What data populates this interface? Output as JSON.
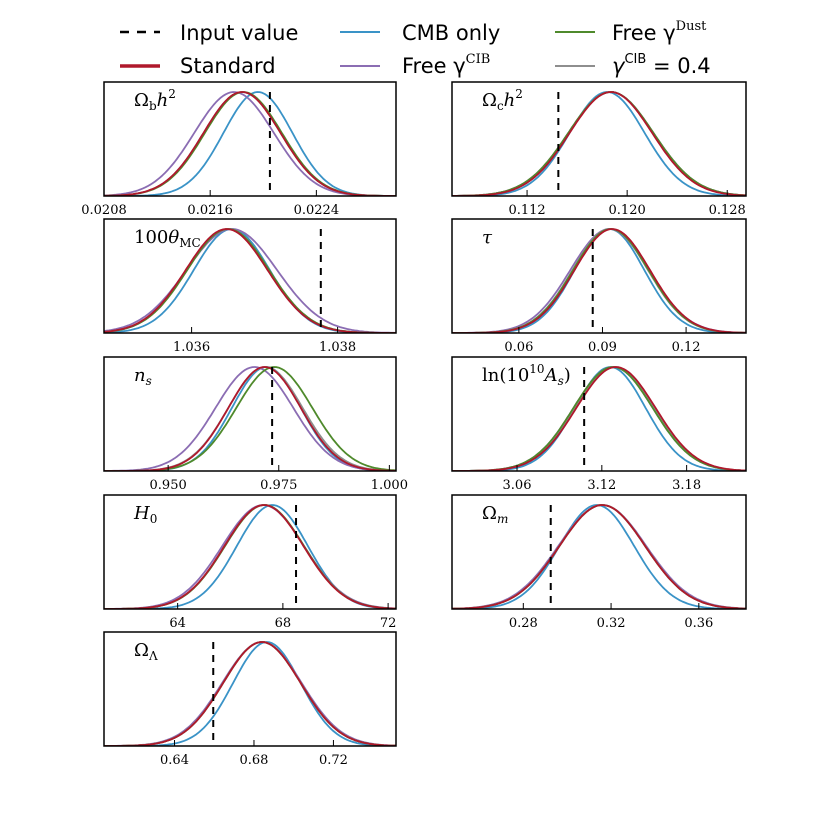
{
  "legend": [
    {
      "key": "input",
      "label": "Input value",
      "color": "#000000",
      "style": "dashed",
      "width": 2.5
    },
    {
      "key": "standard",
      "label": "Standard",
      "color": "#b0182c",
      "style": "solid",
      "width": 3.5
    },
    {
      "key": "cmb",
      "label": "CMB only",
      "color": "#3a93c7",
      "style": "solid",
      "width": 2
    },
    {
      "key": "freecib",
      "label": "Free γ^CIB",
      "color": "#8b6db3",
      "style": "solid",
      "width": 2
    },
    {
      "key": "freedust",
      "label": "Free γ^Dust",
      "color": "#4f8a2c",
      "style": "solid",
      "width": 2
    },
    {
      "key": "cib04",
      "label": "γ^CIB = 0.4",
      "color": "#8e8e8e",
      "style": "solid",
      "width": 2
    }
  ],
  "chart_data": [
    {
      "type": "line",
      "param": "omega_b",
      "label": "Ωbh2",
      "xlim": [
        0.0208,
        0.023
      ],
      "ticks": [
        0.0208,
        0.0216,
        0.0224
      ],
      "tick_labels": [
        "0.0208",
        "0.0216",
        "0.0224"
      ],
      "input_value": 0.02205,
      "series": [
        {
          "key": "cmb",
          "mean": 0.02196,
          "sigma": 0.00026
        },
        {
          "key": "freecib",
          "mean": 0.02178,
          "sigma": 0.0003
        },
        {
          "key": "freedust",
          "mean": 0.02185,
          "sigma": 0.00029
        },
        {
          "key": "cib04",
          "mean": 0.02184,
          "sigma": 0.00029
        },
        {
          "key": "standard",
          "mean": 0.02184,
          "sigma": 0.00029
        }
      ]
    },
    {
      "type": "line",
      "param": "omega_c",
      "label": "Ωch2",
      "xlim": [
        0.106,
        0.1295
      ],
      "ticks": [
        0.112,
        0.12,
        0.128
      ],
      "tick_labels": [
        "0.112",
        "0.120",
        "0.128"
      ],
      "input_value": 0.1145,
      "series": [
        {
          "key": "cmb",
          "mean": 0.1184,
          "sigma": 0.003
        },
        {
          "key": "freecib",
          "mean": 0.1187,
          "sigma": 0.0034
        },
        {
          "key": "freedust",
          "mean": 0.1187,
          "sigma": 0.0034
        },
        {
          "key": "cib04",
          "mean": 0.1187,
          "sigma": 0.0034
        },
        {
          "key": "standard",
          "mean": 0.1187,
          "sigma": 0.0033
        }
      ]
    },
    {
      "type": "line",
      "param": "theta_mc",
      "label": "100θMC",
      "xlim": [
        1.0348,
        1.0388
      ],
      "ticks": [
        1.036,
        1.038
      ],
      "tick_labels": [
        "1.036",
        "1.038"
      ],
      "input_value": 1.03777,
      "series": [
        {
          "key": "cmb",
          "mean": 1.03655,
          "sigma": 0.00052
        },
        {
          "key": "freecib",
          "mean": 1.03655,
          "sigma": 0.00062
        },
        {
          "key": "freedust",
          "mean": 1.0365,
          "sigma": 0.00056
        },
        {
          "key": "cib04",
          "mean": 1.0365,
          "sigma": 0.00056
        },
        {
          "key": "standard",
          "mean": 1.03648,
          "sigma": 0.00056
        }
      ]
    },
    {
      "type": "line",
      "param": "tau",
      "label": "τ",
      "xlim": [
        0.036,
        0.1415
      ],
      "ticks": [
        0.06,
        0.09,
        0.12
      ],
      "tick_labels": [
        "0.06",
        "0.09",
        "0.12"
      ],
      "input_value": 0.0865,
      "series": [
        {
          "key": "cmb",
          "mean": 0.0925,
          "sigma": 0.0125
        },
        {
          "key": "freecib",
          "mean": 0.0925,
          "sigma": 0.014
        },
        {
          "key": "freedust",
          "mean": 0.093,
          "sigma": 0.0135
        },
        {
          "key": "cib04",
          "mean": 0.0928,
          "sigma": 0.0135
        },
        {
          "key": "standard",
          "mean": 0.0935,
          "sigma": 0.0135
        }
      ]
    },
    {
      "type": "line",
      "param": "n_s",
      "label": "ns",
      "xlim": [
        0.9355,
        1.0015
      ],
      "ticks": [
        0.95,
        0.975,
        1.0
      ],
      "tick_labels": [
        "0.950",
        "0.975",
        "1.000"
      ],
      "input_value": 0.9735,
      "series": [
        {
          "key": "cmb",
          "mean": 0.9722,
          "sigma": 0.0078
        },
        {
          "key": "freecib",
          "mean": 0.9695,
          "sigma": 0.0088
        },
        {
          "key": "freedust",
          "mean": 0.974,
          "sigma": 0.0086
        },
        {
          "key": "cib04",
          "mean": 0.972,
          "sigma": 0.0084
        },
        {
          "key": "standard",
          "mean": 0.9718,
          "sigma": 0.0082
        }
      ]
    },
    {
      "type": "line",
      "param": "ln_as",
      "label": "ln(10^10 As)",
      "xlim": [
        3.014,
        3.222
      ],
      "ticks": [
        3.06,
        3.12,
        3.18
      ],
      "tick_labels": [
        "3.06",
        "3.12",
        "3.18"
      ],
      "input_value": 3.1075,
      "series": [
        {
          "key": "cmb",
          "mean": 3.126,
          "sigma": 0.025
        },
        {
          "key": "freecib",
          "mean": 3.128,
          "sigma": 0.028
        },
        {
          "key": "freedust",
          "mean": 3.128,
          "sigma": 0.028
        },
        {
          "key": "cib04",
          "mean": 3.129,
          "sigma": 0.028
        },
        {
          "key": "standard",
          "mean": 3.13,
          "sigma": 0.028
        }
      ]
    },
    {
      "type": "line",
      "param": "h0",
      "label": "H0",
      "xlim": [
        61.2,
        72.3
      ],
      "ticks": [
        64,
        68,
        72
      ],
      "tick_labels": [
        "64",
        "68",
        "72"
      ],
      "input_value": 68.5,
      "series": [
        {
          "key": "cmb",
          "mean": 67.6,
          "sigma": 1.35
        },
        {
          "key": "freecib",
          "mean": 67.25,
          "sigma": 1.55
        },
        {
          "key": "freedust",
          "mean": 67.3,
          "sigma": 1.5
        },
        {
          "key": "cib04",
          "mean": 67.3,
          "sigma": 1.5
        },
        {
          "key": "standard",
          "mean": 67.28,
          "sigma": 1.5
        }
      ]
    },
    {
      "type": "line",
      "param": "omega_m",
      "label": "Ωm",
      "xlim": [
        0.2475,
        0.3815
      ],
      "ticks": [
        0.28,
        0.32,
        0.36
      ],
      "tick_labels": [
        "0.28",
        "0.32",
        "0.36"
      ],
      "input_value": 0.2925,
      "series": [
        {
          "key": "cmb",
          "mean": 0.3135,
          "sigma": 0.017
        },
        {
          "key": "freecib",
          "mean": 0.316,
          "sigma": 0.02
        },
        {
          "key": "freedust",
          "mean": 0.316,
          "sigma": 0.0195
        },
        {
          "key": "cib04",
          "mean": 0.316,
          "sigma": 0.0195
        },
        {
          "key": "standard",
          "mean": 0.316,
          "sigma": 0.0195
        }
      ]
    },
    {
      "type": "line",
      "param": "omega_lambda",
      "label": "ΩΛ",
      "xlim": [
        0.6045,
        0.7515
      ],
      "ticks": [
        0.64,
        0.68,
        0.72
      ],
      "tick_labels": [
        "0.64",
        "0.68",
        "0.72"
      ],
      "input_value": 0.6595,
      "series": [
        {
          "key": "cmb",
          "mean": 0.6865,
          "sigma": 0.017
        },
        {
          "key": "freecib",
          "mean": 0.684,
          "sigma": 0.02
        },
        {
          "key": "freedust",
          "mean": 0.684,
          "sigma": 0.0195
        },
        {
          "key": "cib04",
          "mean": 0.684,
          "sigma": 0.0195
        },
        {
          "key": "standard",
          "mean": 0.684,
          "sigma": 0.0195
        }
      ]
    }
  ]
}
